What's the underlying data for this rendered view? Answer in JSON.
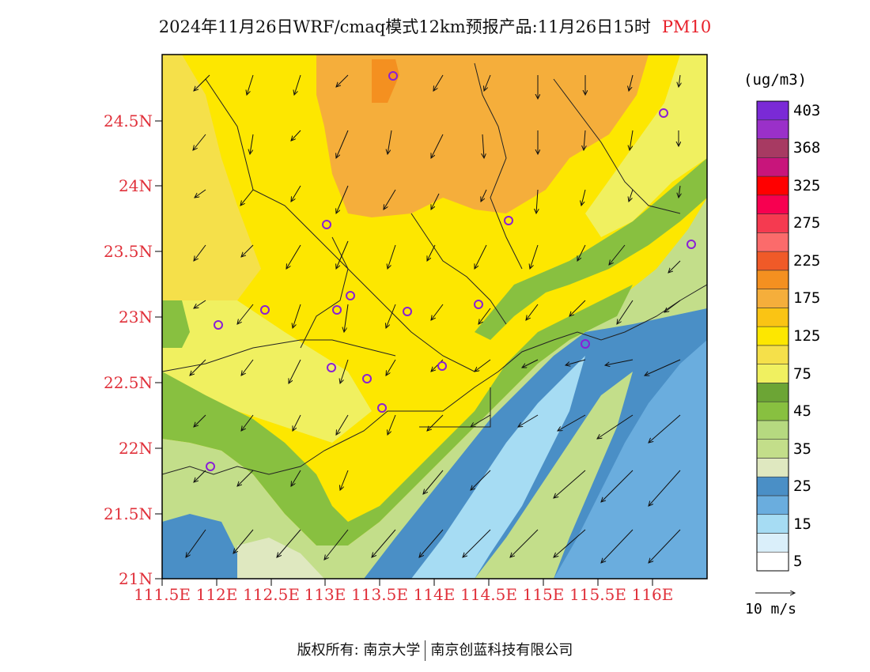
{
  "title": {
    "text": "2024年11月26日WRF/cmaq模式12km预报产品:11月26日15时",
    "variable": "PM10"
  },
  "chart_data": {
    "type": "map-contour",
    "variable": "PM10",
    "unit": "(ug/m3)",
    "x_ticks": [
      "111.5E",
      "112E",
      "112.5E",
      "113E",
      "113.5E",
      "114E",
      "114.5E",
      "115E",
      "115.5E",
      "116E"
    ],
    "y_ticks": [
      "21N",
      "21.5N",
      "22N",
      "22.5N",
      "23N",
      "23.5N",
      "24N",
      "24.5N"
    ],
    "legend": [
      {
        "label": "5",
        "color": "#ffffff"
      },
      {
        "label": "",
        "color": "#daeffa"
      },
      {
        "label": "15",
        "color": "#a6dcf3"
      },
      {
        "label": "",
        "color": "#6aadde"
      },
      {
        "label": "25",
        "color": "#4a8fc6"
      },
      {
        "label": "",
        "color": "#dfe8c0"
      },
      {
        "label": "35",
        "color": "#c3de8a"
      },
      {
        "label": "",
        "color": "#b6d980"
      },
      {
        "label": "45",
        "color": "#88c040"
      },
      {
        "label": "",
        "color": "#6ca535"
      },
      {
        "label": "75",
        "color": "#f0f060"
      },
      {
        "label": "",
        "color": "#f5e04a"
      },
      {
        "label": "125",
        "color": "#fde700"
      },
      {
        "label": "",
        "color": "#fac414"
      },
      {
        "label": "175",
        "color": "#f5ae3b"
      },
      {
        "label": "",
        "color": "#f49020"
      },
      {
        "label": "225",
        "color": "#f05a28"
      },
      {
        "label": "",
        "color": "#fb6b6b"
      },
      {
        "label": "275",
        "color": "#f53a50"
      },
      {
        "label": "",
        "color": "#f70050"
      },
      {
        "label": "325",
        "color": "#ff0000"
      },
      {
        "label": "",
        "color": "#c8157b"
      },
      {
        "label": "368",
        "color": "#a73a62"
      },
      {
        "label": "",
        "color": "#9a30c9"
      },
      {
        "label": "403",
        "color": "#7a2ad6"
      }
    ],
    "wind_reference": "10 m/s"
  },
  "footer": {
    "left": "版权所有: 南京大学",
    "right": "南京创蓝科技有限公司"
  }
}
